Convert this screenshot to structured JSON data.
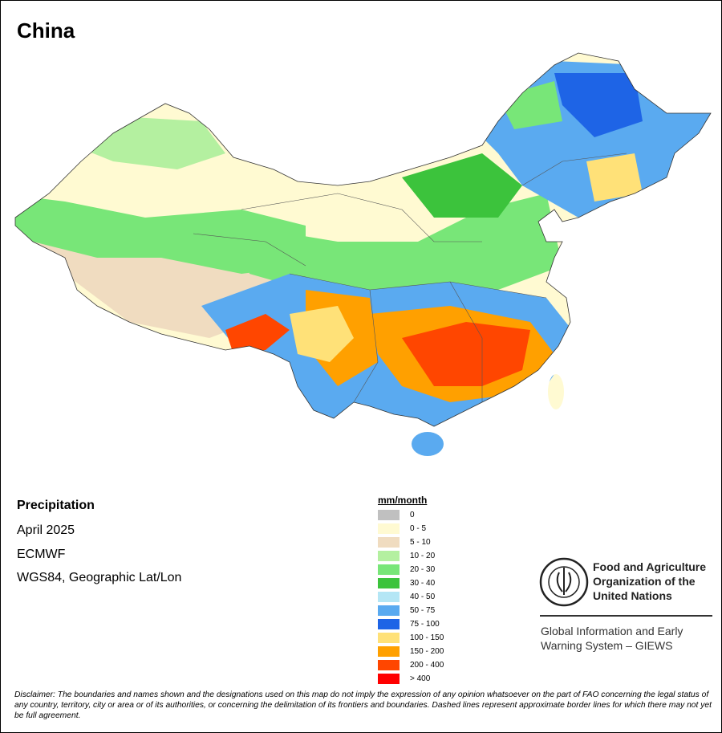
{
  "title": "China",
  "info": [
    "Precipitation",
    "April 2025",
    "ECMWF",
    "WGS84, Geographic Lat/Lon"
  ],
  "legend": {
    "title": "mm/month",
    "entries": [
      {
        "label": "0",
        "color": "#c0c0c0"
      },
      {
        "label": "0 - 5",
        "color": "#fffad2"
      },
      {
        "label": "5 - 10",
        "color": "#f0dcc0"
      },
      {
        "label": "10 - 20",
        "color": "#b4f0a0"
      },
      {
        "label": "20 - 30",
        "color": "#78e678"
      },
      {
        "label": "30 - 40",
        "color": "#3cc33c"
      },
      {
        "label": "40 - 50",
        "color": "#b4e6f5"
      },
      {
        "label": "50 - 75",
        "color": "#5aaaf0"
      },
      {
        "label": "75 - 100",
        "color": "#1e64e6"
      },
      {
        "label": "100 - 150",
        "color": "#ffe178"
      },
      {
        "label": "150 - 200",
        "color": "#ffa000"
      },
      {
        "label": "200 - 400",
        "color": "#ff4600"
      },
      {
        "label": "> 400",
        "color": "#ff0000"
      }
    ]
  },
  "org": [
    "Food and Agriculture",
    "Organization of the",
    "United Nations"
  ],
  "system": [
    "Global Information and Early",
    "Warning System – GIEWS"
  ],
  "disclaimer": "Disclaimer: The boundaries and names shown and the designations used on this map do not imply the expression of any opinion whatsoever on the part of FAO concerning the legal status of any country, territory, city or area or of its authorities, or concerning the delimitation of its frontiers and boundaries. Dashed lines represent approximate border lines for which there may not yet be full agreement."
}
